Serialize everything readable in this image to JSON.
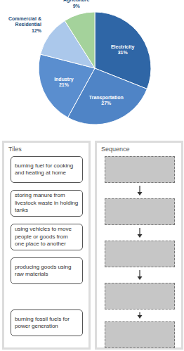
{
  "chart_data": {
    "type": "pie",
    "categories": [
      "Electricity",
      "Transportation",
      "Industry",
      "Commercial & Residential",
      "Agriculture"
    ],
    "values": [
      31,
      27,
      21,
      12,
      9
    ],
    "value_labels": [
      "31%",
      "27%",
      "21%",
      "12%",
      "9%"
    ],
    "colors": [
      "#2f66a6",
      "#4f84c6",
      "#5a8ecf",
      "#abc8eb",
      "#a4d29b"
    ],
    "data_labels": true
  },
  "tiles": {
    "title": "Tiles",
    "items": [
      "burning fuel for cooking and heating at home",
      "storing manure from livestock waste in holding tanks",
      "using vehicles to move people or goods from one place to another",
      "producing goods using raw materials",
      "burning fossil fuels for power generation"
    ]
  },
  "sequence": {
    "title": "Sequence"
  }
}
